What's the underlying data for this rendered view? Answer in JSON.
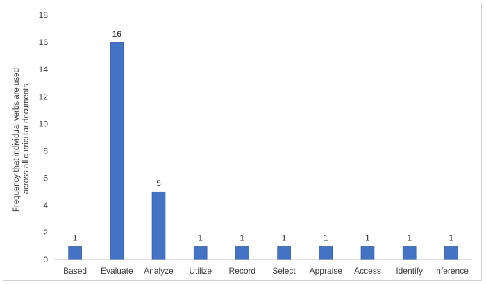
{
  "chart_data": {
    "type": "bar",
    "title": "",
    "xlabel": "",
    "ylabel_lines": [
      "Frequency that individual verbs are used",
      "across all curricular documents"
    ],
    "categories": [
      "Based",
      "Evaluate",
      "Analyze",
      "Utilize",
      "Record",
      "Select",
      "Appraise",
      "Access",
      "Identify",
      "Inference"
    ],
    "values": [
      1,
      16,
      5,
      1,
      1,
      1,
      1,
      1,
      1,
      1
    ],
    "data_labels": [
      "1",
      "16",
      "5",
      "1",
      "1",
      "1",
      "1",
      "1",
      "1",
      "1"
    ],
    "ylim": [
      0,
      18
    ],
    "yticks": [
      0,
      2,
      4,
      6,
      8,
      10,
      12,
      14,
      16,
      18
    ],
    "grid": false,
    "legend": "none",
    "bar_color": "#4472C4",
    "axis_color": "#bfbfbf"
  }
}
